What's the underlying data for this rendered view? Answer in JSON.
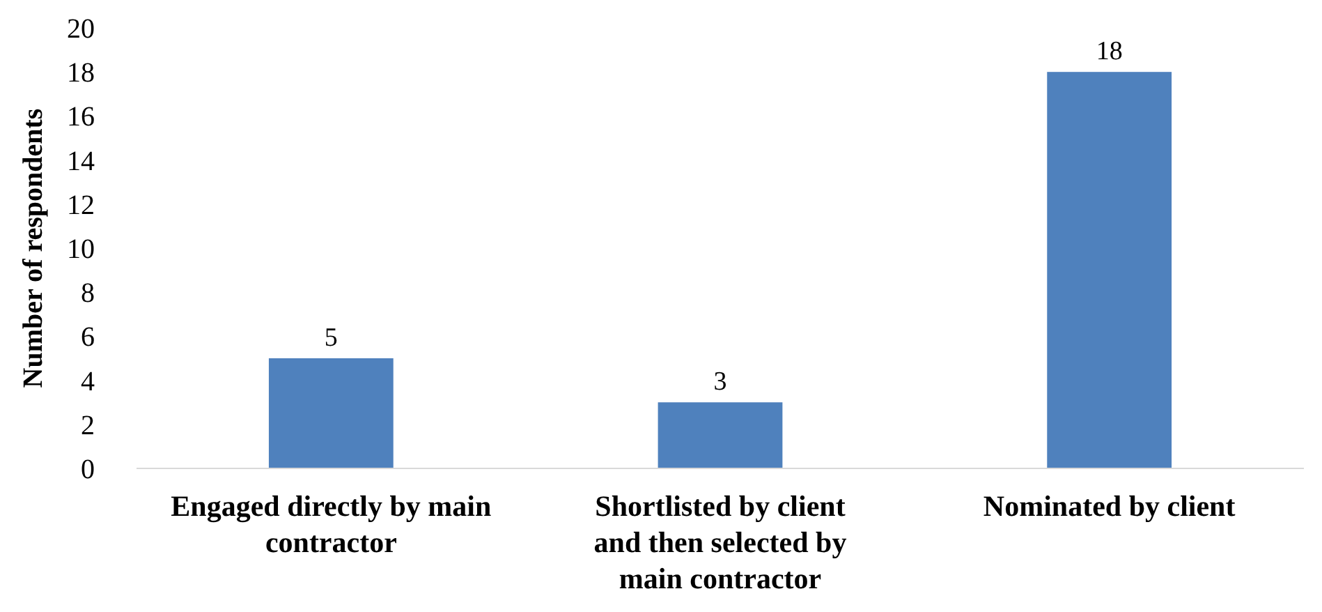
{
  "chart_data": {
    "type": "bar",
    "ylabel": "Number of respondents",
    "categories": [
      "Engaged directly by main contractor",
      "Shortlisted by client and then selected by main contractor",
      "Nominated by client"
    ],
    "values": [
      5,
      3,
      18
    ],
    "color": "#4f81bd",
    "ylim": [
      0,
      20
    ],
    "yticks": [
      0,
      2,
      4,
      6,
      8,
      10,
      12,
      14,
      16,
      18,
      20
    ],
    "data_labels": true,
    "grid": false
  }
}
